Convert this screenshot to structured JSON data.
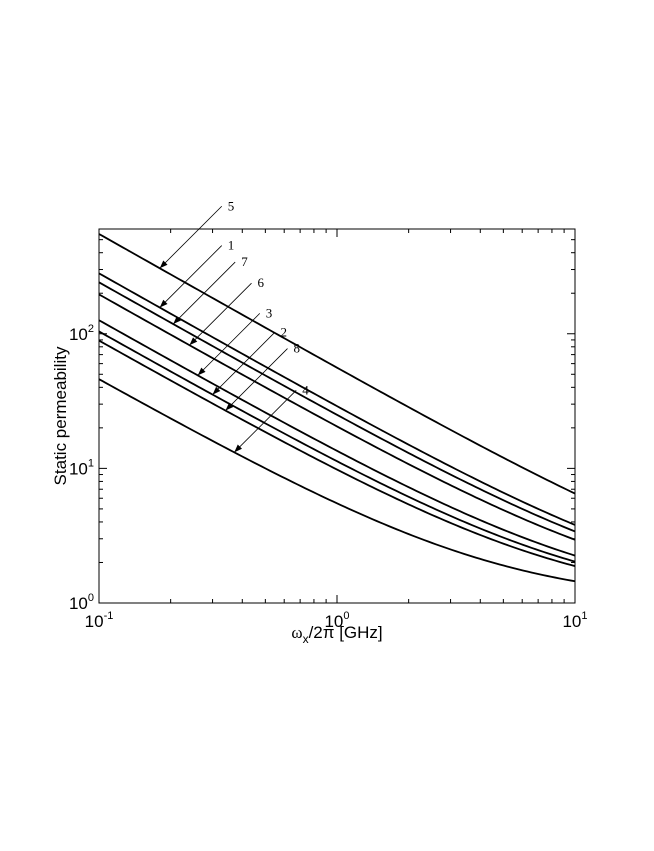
{
  "chart_data": {
    "type": "line",
    "xlabel": {
      "prefix": "ω",
      "subscript": "x",
      "suffix": "/2π [GHz]"
    },
    "ylabel": "Static permeability",
    "xscale": "log",
    "yscale": "log",
    "xlim": [
      0.1,
      10
    ],
    "ylim": [
      1,
      600
    ],
    "x_ticks": [
      {
        "value": 0.1,
        "base": "10",
        "exp": "-1"
      },
      {
        "value": 1,
        "base": "10",
        "exp": "0"
      },
      {
        "value": 10,
        "base": "10",
        "exp": "1"
      }
    ],
    "y_ticks": [
      {
        "value": 1,
        "base": "10",
        "exp": "0"
      },
      {
        "value": 10,
        "base": "10",
        "exp": "1"
      },
      {
        "value": 100,
        "base": "10",
        "exp": "2"
      }
    ],
    "grid": false,
    "legend": "none",
    "line_color": "#000000",
    "model": "mu = 1 + a / x",
    "series": [
      {
        "name": "5",
        "a": 55.0,
        "values_at": {
          "0.1": 551,
          "1": 56,
          "10": 6.5
        }
      },
      {
        "name": "1",
        "a": 28.0,
        "values_at": {
          "0.1": 281,
          "1": 29,
          "10": 3.8
        }
      },
      {
        "name": "7",
        "a": 24.0,
        "values_at": {
          "0.1": 241,
          "1": 25,
          "10": 3.4
        }
      },
      {
        "name": "6",
        "a": 19.5,
        "values_at": {
          "0.1": 196,
          "1": 20.5,
          "10": 2.95
        }
      },
      {
        "name": "3",
        "a": 12.5,
        "values_at": {
          "0.1": 126,
          "1": 13.5,
          "10": 2.25
        }
      },
      {
        "name": "2",
        "a": 10.3,
        "values_at": {
          "0.1": 104,
          "1": 11.3,
          "10": 2.03
        }
      },
      {
        "name": "8",
        "a": 8.8,
        "values_at": {
          "0.1": 89,
          "1": 9.8,
          "10": 1.88
        }
      },
      {
        "name": "4",
        "a": 4.5,
        "values_at": {
          "0.1": 46,
          "1": 5.5,
          "10": 1.45
        }
      }
    ],
    "annotations": [
      {
        "label": "5",
        "series": "5",
        "arrow_x": 0.18
      },
      {
        "label": "1",
        "series": "1",
        "arrow_x": 0.18
      },
      {
        "label": "7",
        "series": "7",
        "arrow_x": 0.205
      },
      {
        "label": "6",
        "series": "6",
        "arrow_x": 0.24
      },
      {
        "label": "3",
        "series": "3",
        "arrow_x": 0.26
      },
      {
        "label": "2",
        "series": "2",
        "arrow_x": 0.3
      },
      {
        "label": "8",
        "series": "8",
        "arrow_x": 0.34
      },
      {
        "label": "4",
        "series": "4",
        "arrow_x": 0.37
      }
    ]
  }
}
